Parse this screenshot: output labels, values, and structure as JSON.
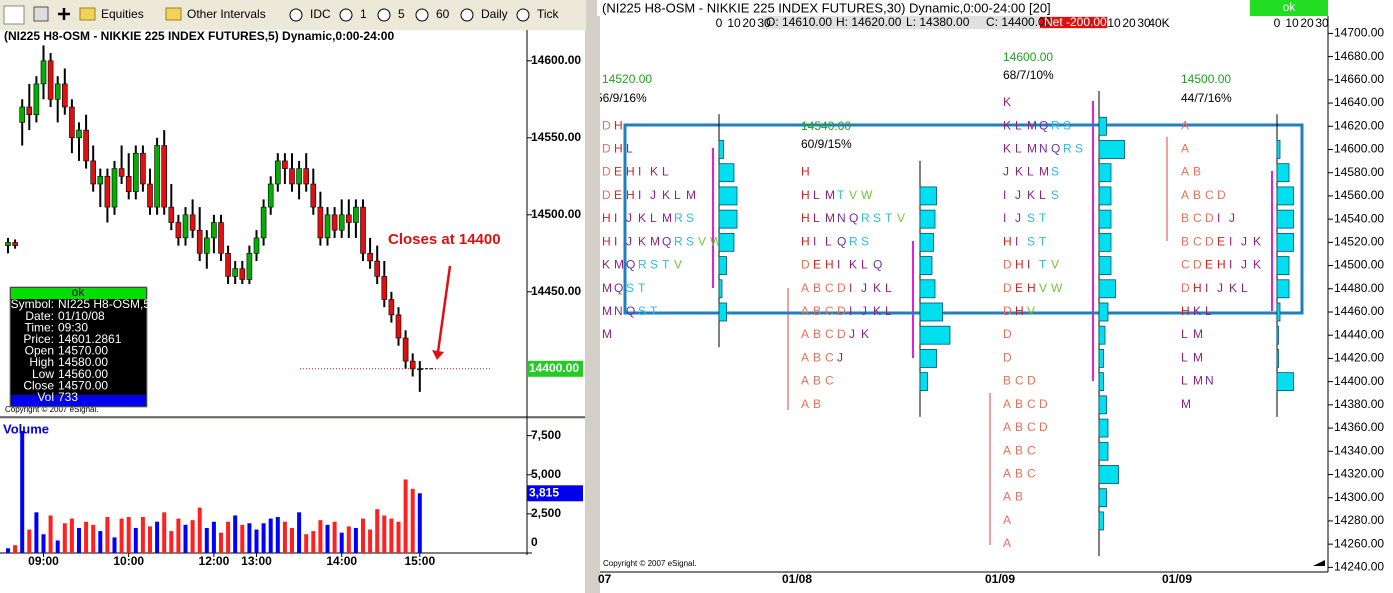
{
  "toolbar": {
    "items": [
      "Equities",
      "Other Intervals",
      "IDC",
      "1",
      "5",
      "60",
      "Daily",
      "Tick"
    ]
  },
  "left_window": {
    "title": "(NI225 H8-OSM - NIKKIE 225 INDEX FUTURES,5) Dynamic,0:00-24:00",
    "copyright": "Copyright © 2007 eSignal.",
    "data_window": {
      "status": "ok",
      "rows": [
        [
          "Symbol:",
          "NI225 H8-OSM,5"
        ],
        [
          "Date:",
          "01/10/08"
        ],
        [
          "Time:",
          "09:30"
        ],
        [
          "Price:",
          "14601.2861"
        ],
        [
          "Open",
          "14570.00"
        ],
        [
          "High",
          "14580.00"
        ],
        [
          "Low",
          "14560.00"
        ],
        [
          "Close",
          "14570.00"
        ],
        [
          "Vol",
          "733"
        ]
      ]
    }
  },
  "right_window": {
    "title": "(NI225 H8-OSM - NIKKIE 225 INDEX FUTURES,30) Dynamic,0:00-24:00 [20]",
    "ohlc": [
      "O: 14610.00",
      "H: 14620.00",
      "L: 14380.00",
      "C: 14400.00"
    ],
    "net": "Net -200.00",
    "status": "ok",
    "copyright": "Copyright © 2007 eSignal."
  },
  "chart_data": [
    {
      "type": "candlestick",
      "annotation": "Closes at 14400",
      "up_color": "#00b000",
      "down_color": "#e01010",
      "open": [
        14480,
        14482,
        14560,
        14570,
        14565,
        14585,
        14600,
        14575,
        14585,
        14570,
        14550,
        14555,
        14535,
        14520,
        14525,
        14505,
        14530,
        14525,
        14515,
        14540,
        14520,
        14505,
        14545,
        14505,
        14495,
        14485,
        14500,
        14490,
        14475,
        14485,
        14495,
        14475,
        14460,
        14465,
        14458,
        14475,
        14485,
        14505,
        14520,
        14535,
        14530,
        14520,
        14530,
        14520,
        14505,
        14485,
        14500,
        14490,
        14500,
        14495,
        14505,
        14475,
        14470,
        14460,
        14445,
        14435,
        14420,
        14405,
        14400
      ],
      "high": [
        14485,
        14484,
        14575,
        14585,
        14590,
        14610,
        14605,
        14590,
        14595,
        14575,
        14560,
        14565,
        14545,
        14530,
        14530,
        14535,
        14545,
        14540,
        14545,
        14545,
        14530,
        14550,
        14555,
        14520,
        14500,
        14505,
        14510,
        14505,
        14490,
        14500,
        14500,
        14480,
        14470,
        14470,
        14480,
        14490,
        14510,
        14525,
        14540,
        14540,
        14540,
        14535,
        14540,
        14530,
        14515,
        14505,
        14505,
        14510,
        14510,
        14510,
        14510,
        14485,
        14480,
        14470,
        14450,
        14440,
        14425,
        14410,
        14405
      ],
      "low": [
        14475,
        14478,
        14545,
        14555,
        14560,
        14575,
        14570,
        14560,
        14565,
        14540,
        14535,
        14530,
        14515,
        14505,
        14495,
        14500,
        14520,
        14510,
        14510,
        14515,
        14500,
        14500,
        14500,
        14490,
        14480,
        14480,
        14485,
        14470,
        14465,
        14475,
        14470,
        14455,
        14455,
        14455,
        14455,
        14470,
        14480,
        14500,
        14515,
        14520,
        14515,
        14510,
        14515,
        14500,
        14480,
        14480,
        14485,
        14485,
        14485,
        14485,
        14470,
        14465,
        14455,
        14440,
        14430,
        14415,
        14400,
        14395,
        14385
      ],
      "close": [
        14482,
        14480,
        14570,
        14565,
        14585,
        14600,
        14575,
        14585,
        14570,
        14550,
        14555,
        14535,
        14520,
        14525,
        14505,
        14530,
        14525,
        14515,
        14540,
        14520,
        14505,
        14545,
        14505,
        14495,
        14485,
        14500,
        14490,
        14475,
        14485,
        14495,
        14475,
        14460,
        14465,
        14458,
        14475,
        14485,
        14505,
        14520,
        14535,
        14530,
        14520,
        14530,
        14520,
        14505,
        14485,
        14500,
        14490,
        14500,
        14495,
        14505,
        14475,
        14470,
        14460,
        14445,
        14435,
        14420,
        14405,
        14400,
        14400
      ],
      "ylim": [
        14370,
        14620
      ],
      "yticks": [
        {
          "value": 14600,
          "label": "14600.00"
        },
        {
          "value": 14550,
          "label": "14550.00"
        },
        {
          "value": 14500,
          "label": "14500.00"
        },
        {
          "value": 14450,
          "label": "14450.00"
        }
      ],
      "close_marker": {
        "value": 14400,
        "label": "14400.00"
      }
    },
    {
      "type": "bar",
      "title": "Volume",
      "up_color": "#0000ff",
      "down_color": "#ff2020",
      "categories": [
        null,
        null,
        null,
        null,
        null,
        "09:00",
        null,
        null,
        null,
        null,
        null,
        null,
        null,
        null,
        null,
        null,
        null,
        "10:00",
        null,
        null,
        null,
        null,
        null,
        null,
        null,
        null,
        null,
        null,
        null,
        "12:00",
        null,
        null,
        null,
        null,
        null,
        "13:00",
        null,
        null,
        null,
        null,
        null,
        null,
        null,
        null,
        null,
        null,
        null,
        "14:00",
        null,
        null,
        null,
        null,
        null,
        null,
        null,
        null,
        null,
        null,
        "15:00"
      ],
      "values": [
        300,
        500,
        7800,
        1500,
        2600,
        1200,
        2400,
        800,
        1900,
        2200,
        1600,
        2000,
        1800,
        1400,
        2300,
        1000,
        2200,
        2300,
        1600,
        2300,
        1700,
        2000,
        2600,
        1400,
        2200,
        1800,
        2100,
        2900,
        1600,
        2000,
        1300,
        2000,
        2400,
        1800,
        1900,
        1500,
        1900,
        2200,
        2300,
        2000,
        1600,
        2600,
        1200,
        1400,
        2100,
        1800,
        2000,
        1300,
        1700,
        1600,
        2200,
        1500,
        2800,
        2400,
        2200,
        2000,
        4700,
        4100,
        3815
      ],
      "ylim": [
        0,
        8500
      ],
      "yticks": [
        {
          "value": 7500,
          "label": "7,500"
        },
        {
          "value": 5000,
          "label": "5,000"
        },
        {
          "value": 2500,
          "label": "2,500"
        },
        0
      ],
      "last_marker": {
        "value": 3815,
        "label": "3,815"
      }
    },
    {
      "type": "market-profile",
      "ylim": [
        14236,
        14715
      ],
      "yticks": [
        {
          "value": 14700,
          "label": "14700.00"
        },
        {
          "value": 14680,
          "label": "14680.00"
        },
        {
          "value": 14660,
          "label": "14660.00"
        },
        {
          "value": 14640,
          "label": "14640.00"
        },
        {
          "value": 14620,
          "label": "14620.00"
        },
        {
          "value": 14600,
          "label": "14600.00"
        },
        {
          "value": 14580,
          "label": "14580.00"
        },
        {
          "value": 14560,
          "label": "14560.00"
        },
        {
          "value": 14540,
          "label": "14540.00"
        },
        {
          "value": 14520,
          "label": "14520.00"
        },
        {
          "value": 14500,
          "label": "14500.00"
        },
        {
          "value": 14480,
          "label": "14480.00"
        },
        {
          "value": 14460,
          "label": "14460.00"
        },
        {
          "value": 14440,
          "label": "14440.00"
        },
        {
          "value": 14420,
          "label": "14420.00"
        },
        {
          "value": 14400,
          "label": "14400.00"
        },
        {
          "value": 14380,
          "label": "14380.00"
        },
        {
          "value": 14360,
          "label": "14360.00"
        },
        {
          "value": 14340,
          "label": "14340.00"
        },
        {
          "value": 14320,
          "label": "14320.00"
        },
        {
          "value": 14300,
          "label": "14300.00"
        },
        {
          "value": 14280,
          "label": "14280.00"
        },
        {
          "value": 14260,
          "label": "14260.00"
        },
        {
          "value": 14240,
          "label": "14240.00"
        }
      ],
      "profiles": [
        {
          "date": "07",
          "poc": "14520.00",
          "stats": "56/9/16%",
          "volume_ticks": [
            0,
            10,
            20,
            30
          ],
          "rows": [
            {
              "price": 14620,
              "letters": "D H"
            },
            {
              "price": 14600,
              "letters": "D H L",
              "volume": 3
            },
            {
              "price": 14580,
              "letters": "D E H I K L",
              "volume": 10
            },
            {
              "price": 14560,
              "letters": "D E H I J K L M",
              "volume": 12
            },
            {
              "price": 14540,
              "letters": "H I J K L M R S",
              "volume": 12
            },
            {
              "price": 14520,
              "letters": "H I J K M Q R S V W",
              "volume": 10
            },
            {
              "price": 14500,
              "letters": "K M Q R S T V",
              "volume": 5
            },
            {
              "price": 14480,
              "letters": "M Q S T",
              "volume": 2
            },
            {
              "price": 14460,
              "letters": "M N Q S T",
              "volume": 5
            },
            {
              "price": 14440,
              "letters": "M"
            }
          ]
        },
        {
          "date": "01/08",
          "poc": "14540.00",
          "stats": "60/9/15%",
          "rows": [
            {
              "price": 14580,
              "letters": "H"
            },
            {
              "price": 14560,
              "letters": "H L M T V W",
              "volume": 11
            },
            {
              "price": 14540,
              "letters": "H L M N Q R S T V",
              "volume": 10
            },
            {
              "price": 14520,
              "letters": "H I L Q R S",
              "volume": 9
            },
            {
              "price": 14500,
              "letters": "D E H I K L Q",
              "volume": 8
            },
            {
              "price": 14480,
              "letters": "A B C D I J K L",
              "volume": 10
            },
            {
              "price": 14460,
              "letters": "A B C D I J K L",
              "volume": 15
            },
            {
              "price": 14440,
              "letters": "A B C D J K",
              "volume": 20
            },
            {
              "price": 14420,
              "letters": "A B C J",
              "volume": 11
            },
            {
              "price": 14400,
              "letters": "A B C",
              "volume": 5
            },
            {
              "price": 14380,
              "letters": "A B"
            }
          ]
        },
        {
          "date": "01/09",
          "poc": "14600.00",
          "stats": "68/7/10%",
          "volume_ticks": [
            10,
            20,
            30,
            {
              "value": 40,
              "label": "40K"
            }
          ],
          "rows": [
            {
              "price": 14640,
              "letters": "K"
            },
            {
              "price": 14620,
              "letters": "K L M Q R S",
              "volume": 5
            },
            {
              "price": 14600,
              "letters": "K L M N Q R S",
              "volume": 17
            },
            {
              "price": 14580,
              "letters": "J K L M S",
              "volume": 8
            },
            {
              "price": 14560,
              "letters": "I J K L S",
              "volume": 8
            },
            {
              "price": 14540,
              "letters": "I J S T",
              "volume": 8
            },
            {
              "price": 14520,
              "letters": "H I S T",
              "volume": 8
            },
            {
              "price": 14500,
              "letters": "D H I T V",
              "volume": 8
            },
            {
              "price": 14480,
              "letters": "D E H V W",
              "volume": 11
            },
            {
              "price": 14460,
              "letters": "D H V",
              "volume": 6
            },
            {
              "price": 14440,
              "letters": "D",
              "volume": 4
            },
            {
              "price": 14420,
              "letters": "D",
              "volume": 3
            },
            {
              "price": 14400,
              "letters": "B C D",
              "volume": 3
            },
            {
              "price": 14380,
              "letters": "A B C D",
              "volume": 5
            },
            {
              "price": 14360,
              "letters": "A B C D",
              "volume": 6
            },
            {
              "price": 14340,
              "letters": "A B C",
              "volume": 6
            },
            {
              "price": 14320,
              "letters": "A B C",
              "volume": 13
            },
            {
              "price": 14300,
              "letters": "A B",
              "volume": 5
            },
            {
              "price": 14280,
              "letters": "A",
              "volume": 3
            },
            {
              "price": 14260,
              "letters": "A"
            }
          ]
        },
        {
          "date": "01/09",
          "poc": "14500.00",
          "stats": "44/7/16%",
          "volume_ticks": [
            0,
            10,
            20,
            30
          ],
          "rows": [
            {
              "price": 14620,
              "letters": "A"
            },
            {
              "price": 14600,
              "letters": "A",
              "volume": 2
            },
            {
              "price": 14580,
              "letters": "A B",
              "volume": 8
            },
            {
              "price": 14560,
              "letters": "A B C D",
              "volume": 11
            },
            {
              "price": 14540,
              "letters": "B C D I J",
              "volume": 11
            },
            {
              "price": 14520,
              "letters": "B C D E I J K",
              "volume": 11
            },
            {
              "price": 14500,
              "letters": "C D E H I J K",
              "volume": 8
            },
            {
              "price": 14480,
              "letters": "D H I J K L",
              "volume": 8
            },
            {
              "price": 14460,
              "letters": "H K L",
              "volume": 2
            },
            {
              "price": 14440,
              "letters": "L M",
              "volume": 1
            },
            {
              "price": 14420,
              "letters": "L M",
              "volume": 1
            },
            {
              "price": 14400,
              "letters": "L M N",
              "volume": 11
            },
            {
              "price": 14380,
              "letters": "M"
            }
          ]
        }
      ]
    }
  ]
}
